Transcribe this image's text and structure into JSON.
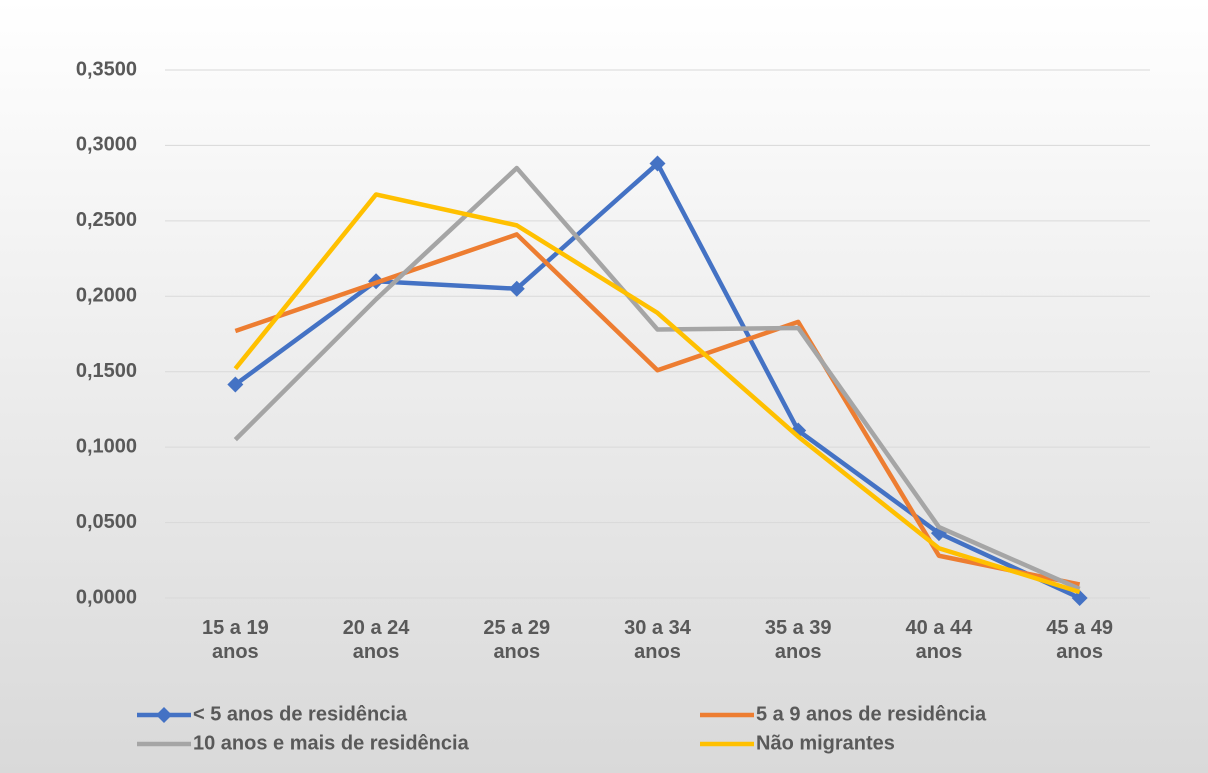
{
  "chart_data": {
    "type": "line",
    "categories": [
      "15 a 19 anos",
      "20 a 24 anos",
      "25 a 29 anos",
      "30 a 34 anos",
      "35 a 39 anos",
      "40 a 44 anos",
      "45 a 49 anos"
    ],
    "series": [
      {
        "name": "< 5 anos de residência",
        "color": "#4472c4",
        "marker": "diamond",
        "values": [
          0.1415,
          0.21,
          0.205,
          0.288,
          0.111,
          0.043,
          0.0
        ]
      },
      {
        "name": "5 a 9 anos de residência",
        "color": "#ed7d31",
        "values": [
          0.177,
          0.209,
          0.241,
          0.151,
          0.183,
          0.028,
          0.009
        ]
      },
      {
        "name": "10 anos e mais de residência",
        "color": "#a5a5a5",
        "values": [
          0.105,
          0.198,
          0.285,
          0.178,
          0.179,
          0.047,
          0.006
        ]
      },
      {
        "name": "Não migrantes",
        "color": "#ffc000",
        "values": [
          0.152,
          0.2675,
          0.247,
          0.189,
          0.107,
          0.033,
          0.004
        ]
      }
    ],
    "ylim": [
      0,
      0.35
    ],
    "yticks": [
      {
        "value": 0,
        "label": "0,0000"
      },
      {
        "value": 0.05,
        "label": "0,0500"
      },
      {
        "value": 0.1,
        "label": "0,1000"
      },
      {
        "value": 0.15,
        "label": "0,1500"
      },
      {
        "value": 0.2,
        "label": "0,2000"
      },
      {
        "value": 0.25,
        "label": "0,2500"
      },
      {
        "value": 0.3,
        "label": "0,3000"
      },
      {
        "value": 0.35,
        "label": "0,3500"
      }
    ],
    "grid": true
  }
}
